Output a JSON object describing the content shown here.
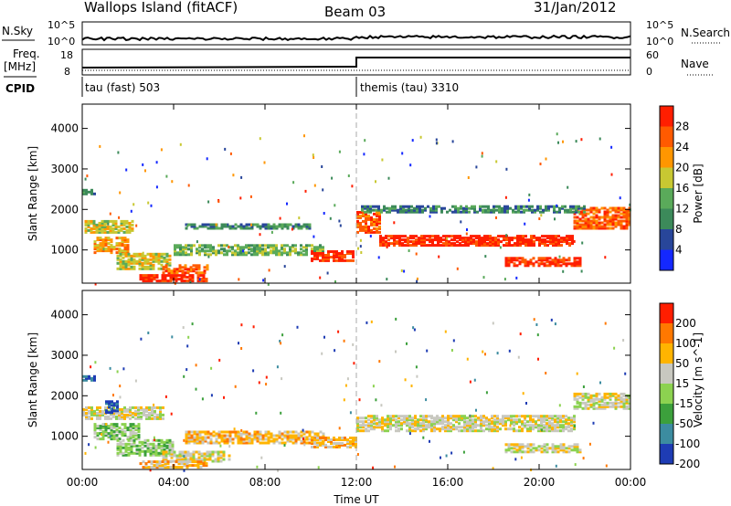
{
  "header": {
    "station": "Wallops Island (fitACF)",
    "beam": "Beam 03",
    "date": "31/Jan/2012"
  },
  "top_panels": {
    "noise_left_label": "N.Sky",
    "noise_right_label": "N.Search",
    "noise_left_ticks": [
      "10^5",
      "10^0"
    ],
    "noise_right_ticks": [
      "10^5",
      "10^0"
    ],
    "freq_label_1": "Freq.",
    "freq_label_2": "[MHz]",
    "freq_ticks": [
      "18",
      "8"
    ],
    "nave_label": "Nave",
    "nave_ticks": [
      "60",
      "0"
    ],
    "cpid_label": "CPID",
    "cpid_segments": [
      "tau (fast) 503",
      "themis (tau) 3310"
    ]
  },
  "chart_data": [
    {
      "type": "heatmap",
      "name": "power",
      "ylabel": "Slant Range [km]",
      "yticks": [
        "1000",
        "2000",
        "3000",
        "4000"
      ],
      "ylim": [
        180,
        4600
      ],
      "x_ticks": [
        "00:00",
        "04:00",
        "08:00",
        "12:00",
        "16:00",
        "20:00",
        "00:00"
      ],
      "xlim_hours": [
        0,
        24
      ],
      "colorbar_label": "Power [dB]",
      "colorbar_ticks": [
        "4",
        "8",
        "12",
        "16",
        "20",
        "24",
        "28"
      ],
      "colors": [
        "#1428ff",
        "#28469a",
        "#3c8a5a",
        "#5aaa5a",
        "#c8c832",
        "#ff9600",
        "#ff5a00",
        "#ff1e00"
      ],
      "bands": [
        {
          "h0": 0.1,
          "h1": 2.2,
          "r0": 1400,
          "r1": 1700,
          "level": 4
        },
        {
          "h0": 0.0,
          "h1": 0.5,
          "r0": 2350,
          "r1": 2450,
          "level": 2
        },
        {
          "h0": 0.5,
          "h1": 2.0,
          "r0": 900,
          "r1": 1300,
          "level": 5
        },
        {
          "h0": 1.5,
          "h1": 3.8,
          "r0": 500,
          "r1": 900,
          "level": 4
        },
        {
          "h0": 3.5,
          "h1": 5.5,
          "r0": 400,
          "r1": 600,
          "level": 6
        },
        {
          "h0": 2.5,
          "h1": 5.5,
          "r0": 200,
          "r1": 360,
          "level": 7
        },
        {
          "h0": 4.0,
          "h1": 10.5,
          "r0": 850,
          "r1": 1100,
          "level": 3
        },
        {
          "h0": 4.5,
          "h1": 10.0,
          "r0": 1500,
          "r1": 1600,
          "level": 2
        },
        {
          "h0": 10.0,
          "h1": 11.9,
          "r0": 700,
          "r1": 950,
          "level": 7
        },
        {
          "h0": 12.0,
          "h1": 13.0,
          "r0": 1400,
          "r1": 1900,
          "level": 6
        },
        {
          "h0": 13.0,
          "h1": 21.5,
          "r0": 1080,
          "r1": 1330,
          "level": 7
        },
        {
          "h0": 18.5,
          "h1": 21.8,
          "r0": 580,
          "r1": 780,
          "level": 7
        },
        {
          "h0": 21.5,
          "h1": 24.0,
          "r0": 1500,
          "r1": 2000,
          "level": 6
        },
        {
          "h0": 12.2,
          "h1": 22.0,
          "r0": 1900,
          "r1": 2050,
          "level": 2
        }
      ]
    },
    {
      "type": "heatmap",
      "name": "velocity",
      "ylabel": "Slant Range [km]",
      "yticks": [
        "1000",
        "2000",
        "3000",
        "4000"
      ],
      "ylim": [
        180,
        4600
      ],
      "x_ticks": [
        "00:00",
        "04:00",
        "08:00",
        "12:00",
        "16:00",
        "20:00",
        "00:00"
      ],
      "xlim_hours": [
        0,
        24
      ],
      "xlabel": "Time UT",
      "colorbar_label": "Velocity [m s^-1]",
      "colorbar_ticks": [
        "200",
        "100",
        "50",
        "15",
        "-15",
        "-50",
        "-100",
        "-200"
      ],
      "colors": [
        "#1e3cb4",
        "#3c8ca0",
        "#3ca03c",
        "#8cd250",
        "#c8c8c0",
        "#ffb400",
        "#ff7800",
        "#ff1e00"
      ],
      "bands": [
        {
          "h0": 0.0,
          "h1": 3.5,
          "r0": 1400,
          "r1": 1700,
          "level": 4
        },
        {
          "h0": 0.0,
          "h1": 0.5,
          "r0": 2350,
          "r1": 2450,
          "level": 0
        },
        {
          "h0": 1.0,
          "h1": 1.6,
          "r0": 1550,
          "r1": 1850,
          "level": 0
        },
        {
          "h0": 0.5,
          "h1": 2.5,
          "r0": 900,
          "r1": 1300,
          "level": 3
        },
        {
          "h0": 1.5,
          "h1": 4.0,
          "r0": 500,
          "r1": 900,
          "level": 3
        },
        {
          "h0": 3.5,
          "h1": 6.5,
          "r0": 350,
          "r1": 600,
          "level": 4
        },
        {
          "h0": 2.5,
          "h1": 5.5,
          "r0": 200,
          "r1": 360,
          "level": 5
        },
        {
          "h0": 4.5,
          "h1": 10.5,
          "r0": 800,
          "r1": 1100,
          "level": 5
        },
        {
          "h0": 10.0,
          "h1": 12.0,
          "r0": 700,
          "r1": 950,
          "level": 5
        },
        {
          "h0": 12.0,
          "h1": 21.5,
          "r0": 1100,
          "r1": 1500,
          "level": 4
        },
        {
          "h0": 18.5,
          "h1": 21.8,
          "r0": 580,
          "r1": 800,
          "level": 4
        },
        {
          "h0": 21.5,
          "h1": 24.0,
          "r0": 1650,
          "r1": 2050,
          "level": 4
        }
      ]
    }
  ]
}
